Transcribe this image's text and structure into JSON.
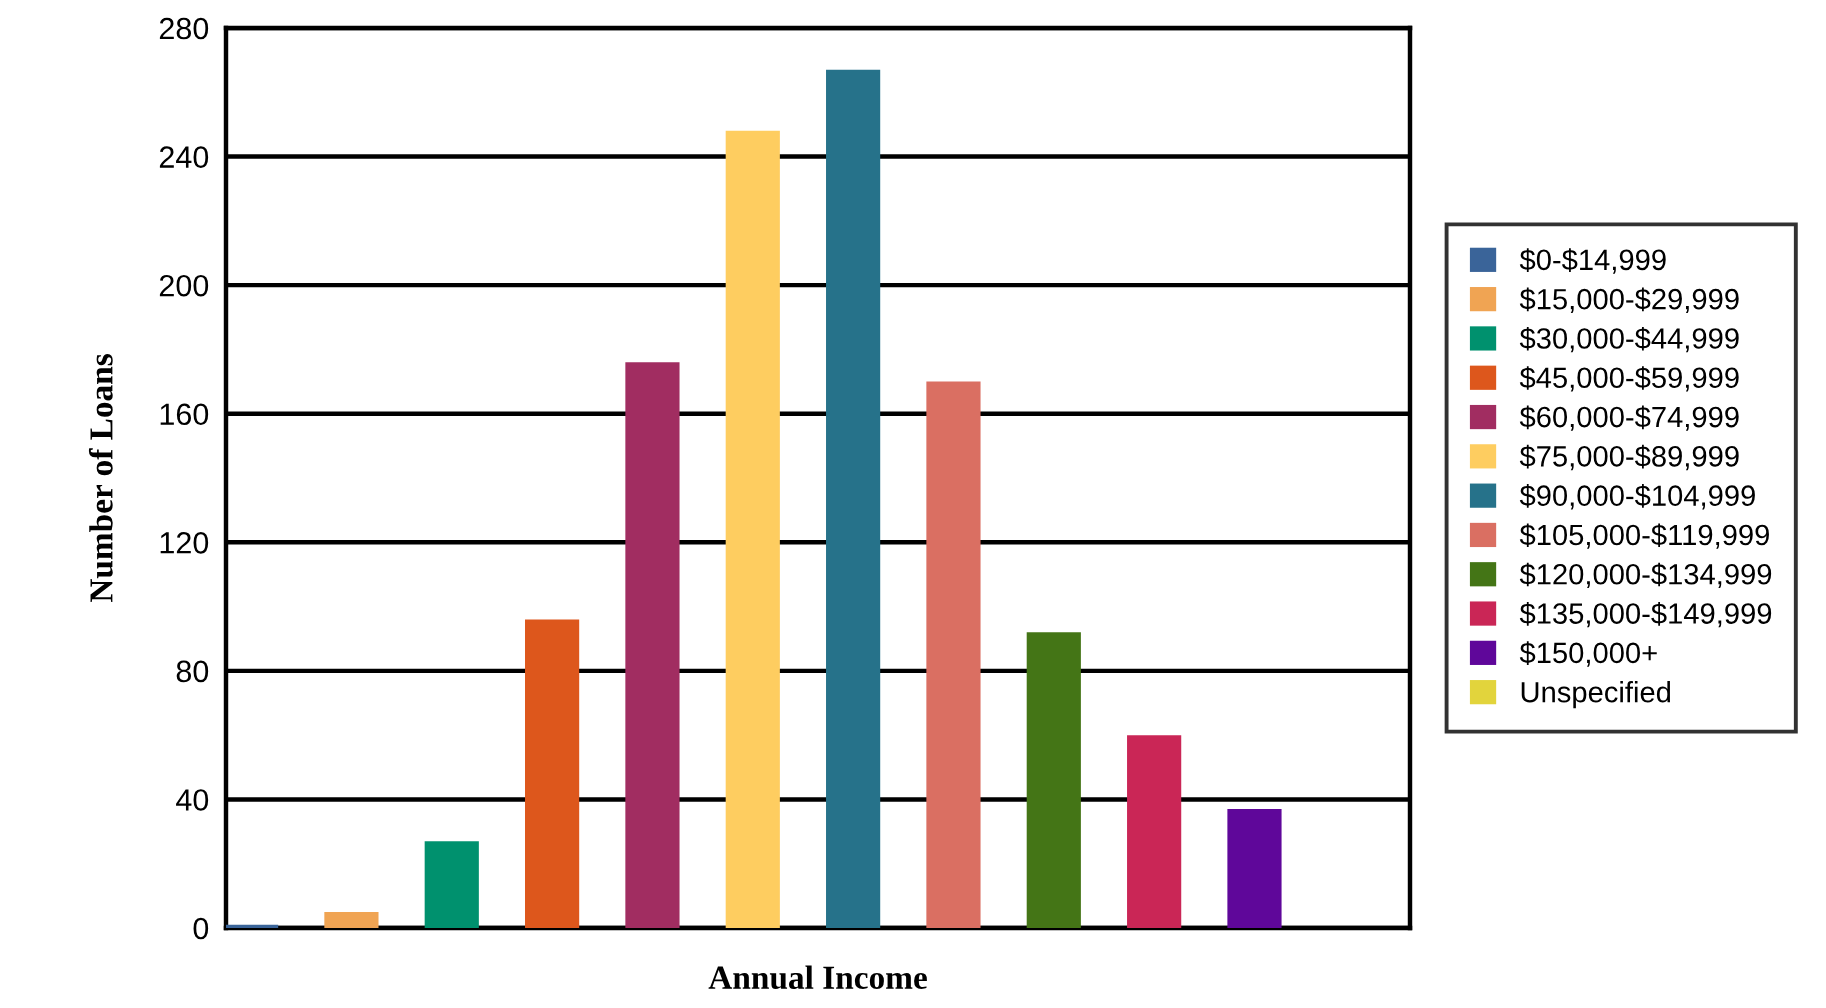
{
  "chart_data": {
    "type": "bar",
    "xlabel": "Annual Income",
    "ylabel": "Number of Loans",
    "categories": [
      null,
      null,
      null,
      null,
      null,
      null,
      null,
      null,
      null,
      null,
      null,
      null
    ],
    "series": [
      {
        "name": "$0-$14,999",
        "color": "#3a6499",
        "values": [
          1,
          null,
          null,
          null,
          null,
          null,
          null,
          null,
          null,
          null,
          null,
          null
        ]
      },
      {
        "name": "$15,000-$29,999",
        "color": "#f0a453",
        "values": [
          null,
          5,
          null,
          null,
          null,
          null,
          null,
          null,
          null,
          null,
          null,
          null
        ]
      },
      {
        "name": "$30,000-$44,999",
        "color": "#00916e",
        "values": [
          null,
          null,
          27,
          null,
          null,
          null,
          null,
          null,
          null,
          null,
          null,
          null
        ]
      },
      {
        "name": "$45,000-$59,999",
        "color": "#dd571c",
        "values": [
          null,
          null,
          null,
          96,
          null,
          null,
          null,
          null,
          null,
          null,
          null,
          null
        ]
      },
      {
        "name": "$60,000-$74,999",
        "color": "#a12d61",
        "values": [
          null,
          null,
          null,
          null,
          176,
          null,
          null,
          null,
          null,
          null,
          null,
          null
        ]
      },
      {
        "name": "$75,000-$89,999",
        "color": "#fecd60",
        "values": [
          null,
          null,
          null,
          null,
          null,
          248,
          null,
          null,
          null,
          null,
          null,
          null
        ]
      },
      {
        "name": "$90,000-$104,999",
        "color": "#26728a",
        "values": [
          null,
          null,
          null,
          null,
          null,
          null,
          267,
          null,
          null,
          null,
          null,
          null
        ]
      },
      {
        "name": "$105,000-$119,999",
        "color": "#da6f62",
        "values": [
          null,
          null,
          null,
          null,
          null,
          null,
          null,
          170,
          null,
          null,
          null,
          null
        ]
      },
      {
        "name": "$120,000-$134,999",
        "color": "#447516",
        "values": [
          null,
          null,
          null,
          null,
          null,
          null,
          null,
          null,
          92,
          null,
          null,
          null
        ]
      },
      {
        "name": "$135,000-$149,999",
        "color": "#ca2656",
        "values": [
          null,
          null,
          null,
          null,
          null,
          null,
          null,
          null,
          null,
          60,
          null,
          null
        ]
      },
      {
        "name": "$150,000+",
        "color": "#5f079a",
        "values": [
          null,
          null,
          null,
          null,
          null,
          null,
          null,
          null,
          null,
          null,
          37,
          null
        ]
      },
      {
        "name": "Unspecified",
        "color": "#e2d43c",
        "values": [
          null,
          null,
          null,
          null,
          null,
          null,
          null,
          null,
          null,
          null,
          null,
          0
        ]
      }
    ],
    "ylim": [
      0,
      280
    ],
    "yticks": [
      0,
      40,
      80,
      120,
      160,
      200,
      240,
      280
    ],
    "grid": "y",
    "legend": "right",
    "tick_labels": "y"
  }
}
